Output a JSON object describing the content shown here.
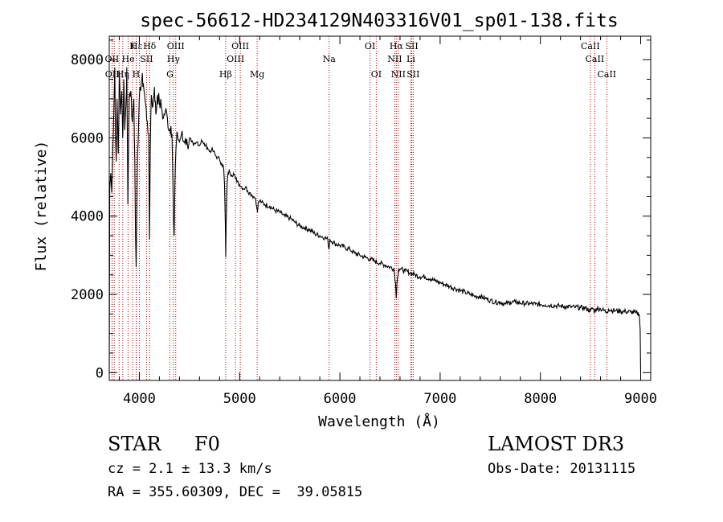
{
  "chart_data": {
    "type": "line",
    "title": "spec-56612-HD234129N403316V01_sp01-138.fits",
    "xlabel": "Wavelength (Å)",
    "ylabel": "Flux (relative)",
    "xlim": [
      3700,
      9100
    ],
    "ylim": [
      -200,
      8600
    ],
    "xticks": [
      4000,
      5000,
      6000,
      7000,
      8000,
      9000
    ],
    "xtick_labels": [
      "4000",
      "5000",
      "6000",
      "7000",
      "8000",
      "9000"
    ],
    "yticks": [
      0,
      2000,
      4000,
      6000,
      8000
    ],
    "ytick_labels": [
      "0",
      "2000",
      "4000",
      "6000",
      "8000"
    ],
    "series": [
      {
        "name": "flux",
        "points": [
          [
            3700,
            0
          ],
          [
            3705,
            4700
          ],
          [
            3715,
            5100
          ],
          [
            3725,
            4600
          ],
          [
            3735,
            5700
          ],
          [
            3745,
            6600
          ],
          [
            3755,
            7800
          ],
          [
            3762,
            6100
          ],
          [
            3770,
            5400
          ],
          [
            3778,
            7000
          ],
          [
            3790,
            5600
          ],
          [
            3800,
            7700
          ],
          [
            3812,
            6600
          ],
          [
            3825,
            7200
          ],
          [
            3835,
            6000
          ],
          [
            3845,
            7500
          ],
          [
            3855,
            6200
          ],
          [
            3866,
            6800
          ],
          [
            3875,
            7800
          ],
          [
            3880,
            6100
          ],
          [
            3886,
            4300
          ],
          [
            3893,
            5900
          ],
          [
            3900,
            7100
          ],
          [
            3915,
            7200
          ],
          [
            3930,
            6400
          ],
          [
            3945,
            7000
          ],
          [
            3955,
            5400
          ],
          [
            3962,
            3500
          ],
          [
            3968,
            2700
          ],
          [
            3974,
            3900
          ],
          [
            3982,
            5600
          ],
          [
            3995,
            6600
          ],
          [
            4010,
            7300
          ],
          [
            4025,
            7500
          ],
          [
            4040,
            7400
          ],
          [
            4060,
            6900
          ],
          [
            4080,
            6400
          ],
          [
            4093,
            6100
          ],
          [
            4101,
            3400
          ],
          [
            4109,
            5600
          ],
          [
            4120,
            7100
          ],
          [
            4135,
            6800
          ],
          [
            4150,
            7300
          ],
          [
            4165,
            6600
          ],
          [
            4180,
            7100
          ],
          [
            4200,
            6900
          ],
          [
            4220,
            6800
          ],
          [
            4240,
            6500
          ],
          [
            4260,
            6700
          ],
          [
            4280,
            6500
          ],
          [
            4300,
            6200
          ],
          [
            4315,
            6300
          ],
          [
            4326,
            6100
          ],
          [
            4335,
            4800
          ],
          [
            4341,
            3900
          ],
          [
            4347,
            3500
          ],
          [
            4355,
            4900
          ],
          [
            4365,
            5700
          ],
          [
            4380,
            6100
          ],
          [
            4400,
            5900
          ],
          [
            4420,
            6100
          ],
          [
            4440,
            5900
          ],
          [
            4460,
            6000
          ],
          [
            4480,
            5800
          ],
          [
            4500,
            6000
          ],
          [
            4520,
            5900
          ],
          [
            4540,
            5800
          ],
          [
            4560,
            5850
          ],
          [
            4580,
            5900
          ],
          [
            4600,
            5800
          ],
          [
            4620,
            5950
          ],
          [
            4640,
            5850
          ],
          [
            4660,
            5800
          ],
          [
            4680,
            5750
          ],
          [
            4700,
            5650
          ],
          [
            4720,
            5700
          ],
          [
            4740,
            5650
          ],
          [
            4760,
            5550
          ],
          [
            4780,
            5500
          ],
          [
            4800,
            5450
          ],
          [
            4820,
            5350
          ],
          [
            4840,
            5250
          ],
          [
            4850,
            4800
          ],
          [
            4858,
            3800
          ],
          [
            4862,
            2950
          ],
          [
            4866,
            3800
          ],
          [
            4875,
            4800
          ],
          [
            4885,
            5100
          ],
          [
            4900,
            5150
          ],
          [
            4920,
            5050
          ],
          [
            4940,
            5100
          ],
          [
            4960,
            4950
          ],
          [
            4980,
            4900
          ],
          [
            5000,
            4800
          ],
          [
            5020,
            4750
          ],
          [
            5040,
            4700
          ],
          [
            5060,
            4750
          ],
          [
            5080,
            4650
          ],
          [
            5100,
            4600
          ],
          [
            5120,
            4550
          ],
          [
            5140,
            4500
          ],
          [
            5160,
            4450
          ],
          [
            5170,
            4250
          ],
          [
            5178,
            4100
          ],
          [
            5185,
            4300
          ],
          [
            5200,
            4400
          ],
          [
            5220,
            4350
          ],
          [
            5250,
            4300
          ],
          [
            5300,
            4250
          ],
          [
            5350,
            4150
          ],
          [
            5400,
            4100
          ],
          [
            5450,
            4000
          ],
          [
            5500,
            3950
          ],
          [
            5550,
            3850
          ],
          [
            5600,
            3750
          ],
          [
            5650,
            3700
          ],
          [
            5700,
            3650
          ],
          [
            5750,
            3550
          ],
          [
            5800,
            3500
          ],
          [
            5850,
            3450
          ],
          [
            5880,
            3400
          ],
          [
            5892,
            3150
          ],
          [
            5900,
            3400
          ],
          [
            5950,
            3300
          ],
          [
            6000,
            3250
          ],
          [
            6050,
            3200
          ],
          [
            6100,
            3150
          ],
          [
            6150,
            3050
          ],
          [
            6200,
            3000
          ],
          [
            6250,
            2950
          ],
          [
            6300,
            2900
          ],
          [
            6350,
            2850
          ],
          [
            6400,
            2800
          ],
          [
            6450,
            2750
          ],
          [
            6500,
            2700
          ],
          [
            6540,
            2650
          ],
          [
            6555,
            2300
          ],
          [
            6563,
            1900
          ],
          [
            6570,
            2300
          ],
          [
            6585,
            2650
          ],
          [
            6600,
            2650
          ],
          [
            6650,
            2600
          ],
          [
            6700,
            2550
          ],
          [
            6750,
            2500
          ],
          [
            6800,
            2450
          ],
          [
            6850,
            2450
          ],
          [
            6900,
            2400
          ],
          [
            6950,
            2350
          ],
          [
            7000,
            2300
          ],
          [
            7050,
            2250
          ],
          [
            7100,
            2200
          ],
          [
            7150,
            2150
          ],
          [
            7200,
            2100
          ],
          [
            7250,
            2050
          ],
          [
            7300,
            2000
          ],
          [
            7350,
            1950
          ],
          [
            7400,
            1950
          ],
          [
            7450,
            1900
          ],
          [
            7500,
            1850
          ],
          [
            7550,
            1800
          ],
          [
            7600,
            1800
          ],
          [
            7650,
            1750
          ],
          [
            7700,
            1800
          ],
          [
            7750,
            1800
          ],
          [
            7800,
            1780
          ],
          [
            7850,
            1770
          ],
          [
            7900,
            1760
          ],
          [
            7950,
            1750
          ],
          [
            8000,
            1740
          ],
          [
            8050,
            1730
          ],
          [
            8100,
            1720
          ],
          [
            8150,
            1710
          ],
          [
            8200,
            1700
          ],
          [
            8250,
            1690
          ],
          [
            8300,
            1680
          ],
          [
            8350,
            1670
          ],
          [
            8400,
            1660
          ],
          [
            8450,
            1650
          ],
          [
            8498,
            1580
          ],
          [
            8520,
            1650
          ],
          [
            8542,
            1560
          ],
          [
            8560,
            1640
          ],
          [
            8600,
            1630
          ],
          [
            8662,
            1550
          ],
          [
            8680,
            1620
          ],
          [
            8700,
            1600
          ],
          [
            8750,
            1580
          ],
          [
            8800,
            1570
          ],
          [
            8850,
            1560
          ],
          [
            8900,
            1550
          ],
          [
            8950,
            1530
          ],
          [
            8985,
            1500
          ],
          [
            8995,
            1100
          ],
          [
            9000,
            0
          ]
        ]
      }
    ],
    "lines": [
      {
        "name": "Hε",
        "wavelength": 3970,
        "row": 1
      },
      {
        "name": "K",
        "wavelength": 3934,
        "row": 1
      },
      {
        "name": "Hδ",
        "wavelength": 4102,
        "row": 1
      },
      {
        "name": "OIII",
        "wavelength": 4363,
        "row": 1
      },
      {
        "name": "OIII",
        "wavelength": 5007,
        "row": 1
      },
      {
        "name": "OI",
        "wavelength": 6300,
        "row": 1
      },
      {
        "name": "Hα",
        "wavelength": 6563,
        "row": 1
      },
      {
        "name": "SII",
        "wavelength": 6717,
        "row": 1
      },
      {
        "name": "CaII",
        "wavelength": 8498,
        "row": 1
      },
      {
        "name": "OII",
        "wavelength": 3727,
        "row": 2
      },
      {
        "name": "He",
        "wavelength": 3889,
        "row": 2
      },
      {
        "name": "SII",
        "wavelength": 4072,
        "row": 2
      },
      {
        "name": "Hγ",
        "wavelength": 4340,
        "row": 2
      },
      {
        "name": "OIII",
        "wavelength": 4959,
        "row": 2
      },
      {
        "name": "Na",
        "wavelength": 5893,
        "row": 2
      },
      {
        "name": "NII",
        "wavelength": 6548,
        "row": 2
      },
      {
        "name": "Li",
        "wavelength": 6708,
        "row": 2
      },
      {
        "name": "CaII",
        "wavelength": 8542,
        "row": 2
      },
      {
        "name": "OII",
        "wavelength": 3729,
        "row": 3
      },
      {
        "name": "Hη",
        "wavelength": 3835,
        "row": 3
      },
      {
        "name": "H",
        "wavelength": 3968,
        "row": 3
      },
      {
        "name": "G",
        "wavelength": 4305,
        "row": 3
      },
      {
        "name": "Hβ",
        "wavelength": 4861,
        "row": 3
      },
      {
        "name": "Mg",
        "wavelength": 5175,
        "row": 3
      },
      {
        "name": "OI",
        "wavelength": 6363,
        "row": 3
      },
      {
        "name": "NII",
        "wavelength": 6583,
        "row": 3
      },
      {
        "name": "SII",
        "wavelength": 6731,
        "row": 3
      },
      {
        "name": "CaII",
        "wavelength": 8662,
        "row": 3
      }
    ],
    "extra_line_wavelengths": [
      3750,
      3798,
      4000
    ],
    "line_color": "#c00000"
  },
  "info": {
    "object_class": "STAR",
    "subclass": "F0",
    "redshift": "cz = 2.1 ± 13.3 km/s",
    "coords": "RA = 355.60309, DEC =  39.05815",
    "survey": "LAMOST DR3",
    "obs_date": "Obs-Date: 20131115"
  }
}
